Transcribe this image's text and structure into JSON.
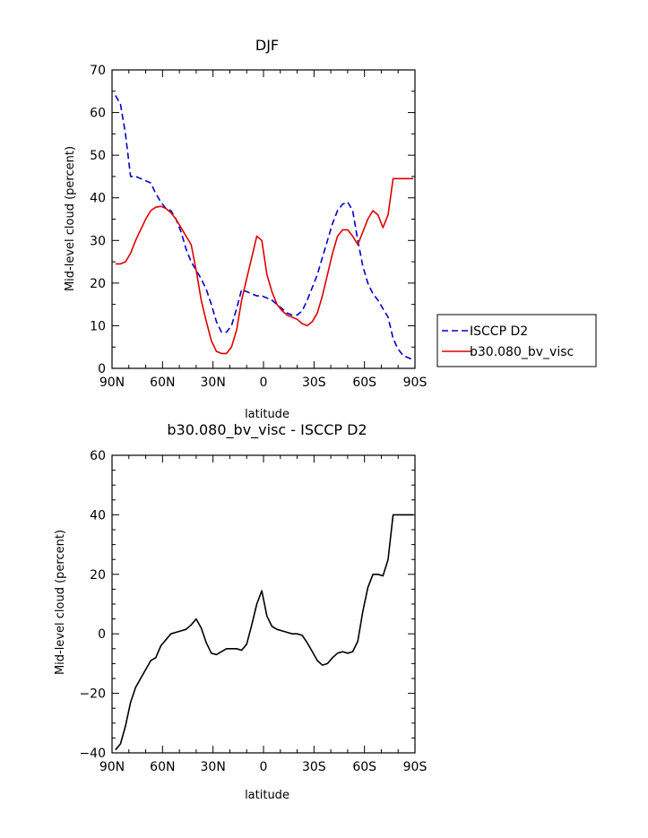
{
  "chart_data": [
    {
      "type": "line",
      "title": "DJF",
      "xlabel": "latitude",
      "ylabel": "Mid-level cloud (percent)",
      "xlim": [
        90,
        -90
      ],
      "ylim": [
        0,
        70
      ],
      "x_ticks": [
        90,
        60,
        30,
        0,
        -30,
        -60,
        -90
      ],
      "x_tick_labels": [
        "90N",
        "60N",
        "30N",
        "0",
        "30S",
        "60S",
        "90S"
      ],
      "y_ticks": [
        0,
        10,
        20,
        30,
        40,
        50,
        60,
        70
      ],
      "y_tick_labels": [
        "0",
        "10",
        "20",
        "30",
        "40",
        "50",
        "60",
        "70"
      ],
      "grid": false,
      "legend_position": "outside-right",
      "series": [
        {
          "name": "ISCCP D2",
          "color": "#0000cc",
          "dash": "dashed",
          "x": [
            88,
            85,
            82,
            79,
            76,
            73,
            70,
            67,
            64,
            61,
            58,
            55,
            52,
            49,
            46,
            43,
            40,
            37,
            34,
            31,
            28,
            25,
            22,
            19,
            16,
            13,
            10,
            7,
            4,
            1,
            -2,
            -5,
            -8,
            -11,
            -14,
            -17,
            -20,
            -23,
            -26,
            -29,
            -32,
            -35,
            -38,
            -41,
            -44,
            -47,
            -50,
            -53,
            -56,
            -59,
            -62,
            -65,
            -68,
            -71,
            -74,
            -77,
            -80,
            -83,
            -86,
            -89
          ],
          "values": [
            64,
            62,
            55,
            45,
            45,
            44.5,
            44,
            43.5,
            41,
            39,
            37.5,
            37,
            35,
            32,
            28,
            25,
            23,
            21,
            18.5,
            15,
            11,
            8.5,
            8.5,
            10,
            14,
            18.5,
            18,
            17.5,
            17,
            17,
            16.5,
            16,
            15,
            14,
            13,
            12.5,
            12.5,
            13.5,
            16,
            19,
            22,
            26,
            30,
            34,
            37,
            38.5,
            39,
            37,
            30,
            24,
            20,
            17.5,
            16,
            14,
            12,
            7,
            4.5,
            3,
            2.5,
            2
          ]
        },
        {
          "name": "b30.080_bv_visc",
          "color": "#dd0000",
          "dash": "solid",
          "x": [
            88,
            85,
            82,
            79,
            76,
            73,
            70,
            67,
            64,
            61,
            58,
            55,
            52,
            49,
            46,
            43,
            40,
            37,
            34,
            31,
            28,
            25,
            22,
            19,
            16,
            13,
            10,
            7,
            4,
            1,
            -2,
            -5,
            -8,
            -11,
            -14,
            -17,
            -20,
            -23,
            -26,
            -29,
            -32,
            -35,
            -38,
            -41,
            -44,
            -47,
            -50,
            -53,
            -56,
            -59,
            -62,
            -65,
            -68,
            -71,
            -74,
            -77,
            -80,
            -83,
            -86,
            -89
          ],
          "values": [
            24.5,
            24.5,
            25,
            27,
            30,
            32.5,
            35,
            37,
            37.8,
            38,
            37.5,
            36.5,
            35,
            33,
            31,
            29,
            23,
            16,
            11,
            6.5,
            4,
            3.5,
            3.5,
            5,
            9,
            16,
            21,
            26,
            31,
            30,
            22,
            18,
            15,
            13.5,
            12.5,
            12,
            11.5,
            10.5,
            10,
            11,
            13,
            17,
            22,
            27,
            31,
            32.5,
            32.5,
            31,
            29,
            32,
            35,
            37,
            36,
            33,
            36,
            44.5,
            44.5,
            44.5,
            44.5,
            44.5
          ]
        }
      ],
      "legend": [
        "ISCCP D2",
        "b30.080_bv_visc"
      ]
    },
    {
      "type": "line",
      "title": "b30.080_bv_visc - ISCCP D2",
      "xlabel": "latitude",
      "ylabel": "Mid-level cloud (percent)",
      "xlim": [
        90,
        -90
      ],
      "ylim": [
        -40,
        60
      ],
      "x_ticks": [
        90,
        60,
        30,
        0,
        -30,
        -60,
        -90
      ],
      "x_tick_labels": [
        "90N",
        "60N",
        "30N",
        "0",
        "30S",
        "60S",
        "90S"
      ],
      "y_ticks": [
        -40,
        -20,
        0,
        20,
        40,
        60
      ],
      "y_tick_labels": [
        "−40",
        "−20",
        "0",
        "20",
        "40",
        "60"
      ],
      "grid": false,
      "series": [
        {
          "color": "#000000",
          "dash": "solid",
          "x": [
            88,
            85,
            82,
            79,
            76,
            73,
            70,
            67,
            64,
            61,
            58,
            55,
            52,
            49,
            46,
            43,
            40,
            37,
            34,
            31,
            28,
            25,
            22,
            19,
            16,
            13,
            10,
            7,
            4,
            1,
            -2,
            -5,
            -8,
            -11,
            -14,
            -17,
            -20,
            -23,
            -26,
            -29,
            -32,
            -35,
            -38,
            -41,
            -44,
            -47,
            -50,
            -53,
            -56,
            -59,
            -62,
            -65,
            -68,
            -71,
            -74,
            -77,
            -80,
            -83,
            -86,
            -89
          ],
          "values": [
            -39,
            -37,
            -31,
            -23,
            -18,
            -15,
            -12,
            -9,
            -8,
            -4,
            -2,
            0,
            0.5,
            1,
            1.5,
            3,
            5,
            2,
            -3,
            -6.5,
            -7,
            -6,
            -5,
            -5,
            -5,
            -5.5,
            -3.5,
            3,
            10,
            14.5,
            6,
            2.5,
            1.5,
            1,
            0.5,
            0,
            0,
            -0.5,
            -3,
            -6,
            -9,
            -10.5,
            -10,
            -8,
            -6.5,
            -6,
            -6.5,
            -6,
            -2.5,
            7.5,
            15.5,
            20,
            20,
            19.5,
            25,
            40,
            40,
            40,
            40,
            40
          ]
        }
      ]
    }
  ]
}
